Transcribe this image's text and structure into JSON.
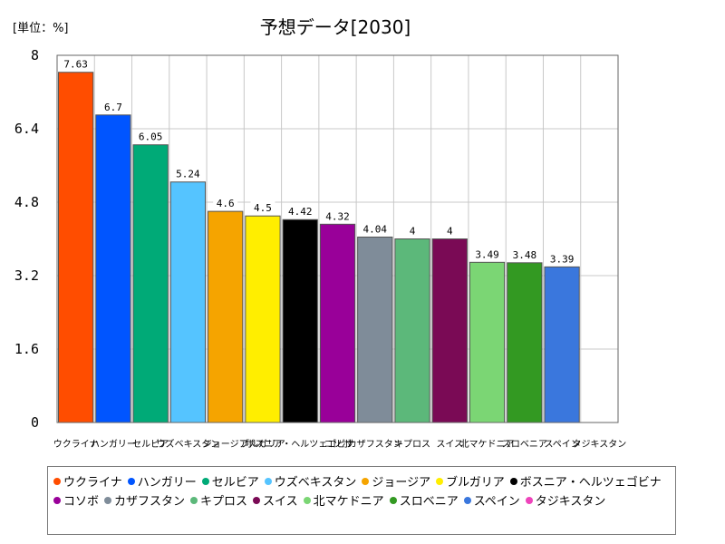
{
  "chart_data": {
    "type": "bar",
    "title": "予想データ[2030]",
    "unit_label": "[単位：%]",
    "xlabel": "",
    "ylabel": "",
    "ylim": [
      0,
      8
    ],
    "yticks": [
      "0",
      "1.6",
      "3.2",
      "4.8",
      "6.4",
      "8"
    ],
    "grid": true,
    "legend_position": "bottom",
    "categories": [
      "ウクライナ",
      "ハンガリー",
      "セルビア",
      "ウズベキスタン",
      "ジョージア",
      "ブルガリア",
      "ボスニア・ヘルツェゴビナ",
      "コソボ",
      "カザフスタン",
      "キプロス",
      "スイス",
      "北マケドニア",
      "スロベニア",
      "スペイン",
      "タジキスタン"
    ],
    "values": [
      7.63,
      6.7,
      6.05,
      5.24,
      4.6,
      4.5,
      4.42,
      4.32,
      4.04,
      4,
      4,
      3.49,
      3.48,
      3.39,
      null
    ],
    "value_labels": [
      "7.63",
      "6.7",
      "6.05",
      "5.24",
      "4.6",
      "4.5",
      "4.42",
      "4.32",
      "4.04",
      "4",
      "4",
      "3.49",
      "3.48",
      "3.39",
      ""
    ],
    "colors": [
      "#ff4d00",
      "#0055ff",
      "#00aa77",
      "#55c4ff",
      "#f5a400",
      "#ffee00",
      "#000000",
      "#990099",
      "#7f8c99",
      "#5cb87a",
      "#7a0a55",
      "#7bd674",
      "#339922",
      "#3a77dd",
      "#ee44bb"
    ]
  }
}
